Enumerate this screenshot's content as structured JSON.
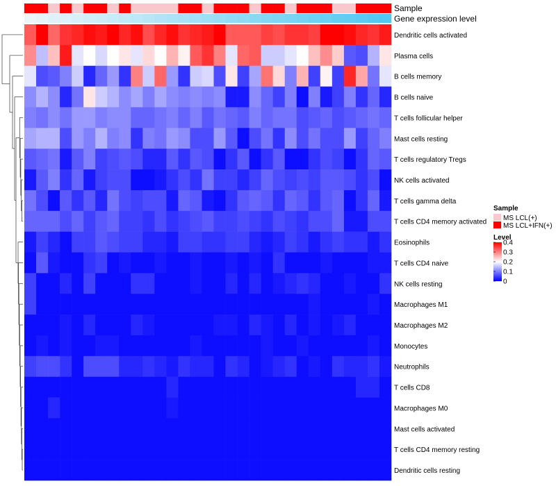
{
  "chart_data": {
    "type": "heatmap",
    "title": "",
    "annotation_tracks": [
      "Sample",
      "Gene expression level"
    ],
    "legend_sample": {
      "title": "Sample",
      "entries": [
        {
          "label": "MS LCL(+)",
          "color": "#f8c8cc"
        },
        {
          "label": "MS LCL+IFN(+)",
          "color": "#ff0000"
        }
      ]
    },
    "legend_level": {
      "title": "Level",
      "ticks": [
        "0.4",
        "0.3",
        "0.2",
        "0.1",
        "0"
      ],
      "tick_values": [
        0.4,
        0.3,
        0.2,
        0.1,
        0
      ],
      "range": [
        0,
        0.4
      ],
      "colors": {
        "low": "#0000ff",
        "mid": "#ffffff",
        "high": "#ff0000"
      }
    },
    "columns": 31,
    "sample_track": [
      1,
      1,
      0,
      1,
      0,
      1,
      1,
      0,
      1,
      0,
      0,
      0,
      0,
      1,
      1,
      0,
      1,
      1,
      1,
      0,
      1,
      1,
      0,
      1,
      1,
      1,
      0,
      0,
      1,
      1,
      1
    ],
    "gene_expression_track": [
      0.0,
      0.03,
      0.07,
      0.1,
      0.13,
      0.17,
      0.2,
      0.23,
      0.27,
      0.3,
      0.33,
      0.37,
      0.4,
      0.43,
      0.47,
      0.5,
      0.53,
      0.57,
      0.6,
      0.63,
      0.67,
      0.7,
      0.73,
      0.77,
      0.8,
      0.83,
      0.87,
      0.9,
      0.93,
      0.97,
      1.0
    ],
    "rows": [
      "Dendritic cells activated",
      "Plasma cells",
      "B cells memory",
      "B cells naive",
      "T cells follicular helper",
      "Mast cells resting",
      "T cells regulatory  Tregs",
      "NK cells activated",
      "T cells gamma delta",
      "T cells CD4 memory activated",
      "Eosinophils",
      "T cells CD4 naive",
      "NK cells resting",
      "Macrophages M1",
      "Macrophages M2",
      "Monocytes",
      "Neutrophils",
      "T cells CD8",
      "Macrophages M0",
      "Mast cells activated",
      "T cells CD4 memory resting",
      "Dendritic cells resting"
    ],
    "values": [
      [
        0.33,
        0.4,
        0.32,
        0.36,
        0.37,
        0.39,
        0.38,
        0.4,
        0.37,
        0.39,
        0.34,
        0.37,
        0.39,
        0.36,
        0.37,
        0.38,
        0.4,
        0.33,
        0.33,
        0.33,
        0.35,
        0.34,
        0.36,
        0.36,
        0.35,
        0.4,
        0.4,
        0.39,
        0.37,
        0.36,
        0.38
      ],
      [
        0.29,
        0.15,
        0.25,
        0.38,
        0.18,
        0.2,
        0.17,
        0.2,
        0.22,
        0.18,
        0.23,
        0.2,
        0.26,
        0.21,
        0.33,
        0.36,
        0.3,
        0.18,
        0.32,
        0.33,
        0.16,
        0.16,
        0.18,
        0.2,
        0.25,
        0.29,
        0.24,
        0.07,
        0.06,
        0.14,
        0.22
      ],
      [
        0.18,
        0.06,
        0.07,
        0.1,
        0.16,
        0.03,
        0.08,
        0.12,
        0.04,
        0.3,
        0.16,
        0.32,
        0.12,
        0.04,
        0.16,
        0.17,
        0.06,
        0.22,
        0.05,
        0.13,
        0.31,
        0.23,
        0.1,
        0.26,
        0.05,
        0.21,
        0.05,
        0.37,
        0.27,
        0.09,
        0.18
      ],
      [
        0.11,
        0.14,
        0.11,
        0.03,
        0.09,
        0.22,
        0.16,
        0.14,
        0.11,
        0.13,
        0.1,
        0.13,
        0.11,
        0.1,
        0.11,
        0.1,
        0.11,
        0.02,
        0.02,
        0.11,
        0.08,
        0.05,
        0.1,
        0.01,
        0.1,
        0.02,
        0.05,
        0.1,
        0.04,
        0.08,
        0.03
      ],
      [
        0.1,
        0.09,
        0.11,
        0.09,
        0.12,
        0.12,
        0.1,
        0.11,
        0.11,
        0.08,
        0.08,
        0.09,
        0.1,
        0.08,
        0.1,
        0.07,
        0.09,
        0.08,
        0.07,
        0.1,
        0.08,
        0.09,
        0.09,
        0.06,
        0.07,
        0.08,
        0.06,
        0.07,
        0.08,
        0.09,
        0.08
      ],
      [
        0.13,
        0.14,
        0.14,
        0.06,
        0.12,
        0.1,
        0.14,
        0.1,
        0.11,
        0.04,
        0.1,
        0.09,
        0.12,
        0.11,
        0.06,
        0.06,
        0.12,
        0.07,
        0.01,
        0.06,
        0.09,
        0.04,
        0.11,
        0.06,
        0.09,
        0.06,
        0.06,
        0.12,
        0.05,
        0.08,
        0.1
      ],
      [
        0.07,
        0.08,
        0.09,
        0.02,
        0.07,
        0.1,
        0.05,
        0.06,
        0.07,
        0.06,
        0.03,
        0.03,
        0.07,
        0.04,
        0.07,
        0.06,
        0.01,
        0.04,
        0.07,
        0.01,
        0.04,
        0.07,
        0.01,
        0.01,
        0.04,
        0.06,
        0.05,
        0.01,
        0.04,
        0.08,
        0.07
      ],
      [
        0.02,
        0.07,
        0.1,
        0.04,
        0.08,
        0.02,
        0.05,
        0.06,
        0.06,
        0.01,
        0.01,
        0.02,
        0.04,
        0.06,
        0.04,
        0.09,
        0.05,
        0.05,
        0.03,
        0.05,
        0.08,
        0.06,
        0.05,
        0.06,
        0.05,
        0.07,
        0.07,
        0.06,
        0.04,
        0.06,
        0.01
      ],
      [
        0.09,
        0.06,
        0.01,
        0.07,
        0.04,
        0.07,
        0.03,
        0.09,
        0.06,
        0.05,
        0.06,
        0.06,
        0.02,
        0.08,
        0.07,
        0.02,
        0.01,
        0.04,
        0.07,
        0.08,
        0.07,
        0.04,
        0.08,
        0.07,
        0.04,
        0.07,
        0.08,
        0.01,
        0.04,
        0.08,
        0.02
      ],
      [
        0.08,
        0.08,
        0.08,
        0.06,
        0.08,
        0.05,
        0.07,
        0.08,
        0.05,
        0.05,
        0.04,
        0.06,
        0.04,
        0.05,
        0.06,
        0.07,
        0.05,
        0.05,
        0.06,
        0.05,
        0.04,
        0.06,
        0.05,
        0.04,
        0.06,
        0.06,
        0.08,
        0.02,
        0.02,
        0.06,
        0.06
      ],
      [
        0.02,
        0.05,
        0.03,
        0.01,
        0.05,
        0.05,
        0.07,
        0.06,
        0.05,
        0.05,
        0.03,
        0.03,
        0.02,
        0.05,
        0.05,
        0.04,
        0.04,
        0.05,
        0.05,
        0.03,
        0.02,
        0.03,
        0.05,
        0.04,
        0.02,
        0.04,
        0.05,
        0.04,
        0.04,
        0.02,
        0.04
      ],
      [
        0.01,
        0.07,
        0.02,
        0.01,
        0.01,
        0.04,
        0.05,
        0.01,
        0.02,
        0.01,
        0.01,
        0.02,
        0.01,
        0.01,
        0.02,
        0.01,
        0.01,
        0.02,
        0.01,
        0.02,
        0.01,
        0.04,
        0.01,
        0.01,
        0.01,
        0.02,
        0.01,
        0.01,
        0.01,
        0.02,
        0.02
      ],
      [
        0.05,
        0.01,
        0.01,
        0.03,
        0.01,
        0.05,
        0.01,
        0.01,
        0.01,
        0.04,
        0.04,
        0.01,
        0.01,
        0.01,
        0.02,
        0.01,
        0.01,
        0.03,
        0.01,
        0.03,
        0.01,
        0.02,
        0.03,
        0.04,
        0.03,
        0.01,
        0.01,
        0.02,
        0.01,
        0.01,
        0.04
      ],
      [
        0.05,
        0.01,
        0.01,
        0.01,
        0.01,
        0.01,
        0.01,
        0.01,
        0.01,
        0.01,
        0.01,
        0.01,
        0.01,
        0.01,
        0.01,
        0.01,
        0.01,
        0.01,
        0.01,
        0.01,
        0.01,
        0.01,
        0.01,
        0.01,
        0.02,
        0.01,
        0.01,
        0.01,
        0.01,
        0.02,
        0.01
      ],
      [
        0.01,
        0.01,
        0.01,
        0.02,
        0.01,
        0.03,
        0.01,
        0.01,
        0.01,
        0.03,
        0.02,
        0.01,
        0.01,
        0.01,
        0.01,
        0.01,
        0.02,
        0.02,
        0.01,
        0.03,
        0.02,
        0.01,
        0.03,
        0.01,
        0.02,
        0.01,
        0.02,
        0.03,
        0.01,
        0.01,
        0.01
      ],
      [
        0.01,
        0.02,
        0.01,
        0.02,
        0.01,
        0.01,
        0.02,
        0.02,
        0.01,
        0.01,
        0.01,
        0.01,
        0.01,
        0.01,
        0.02,
        0.01,
        0.01,
        0.01,
        0.01,
        0.01,
        0.02,
        0.01,
        0.01,
        0.02,
        0.01,
        0.01,
        0.01,
        0.01,
        0.01,
        0.02,
        0.01
      ],
      [
        0.05,
        0.06,
        0.06,
        0.04,
        0.01,
        0.06,
        0.06,
        0.06,
        0.03,
        0.03,
        0.04,
        0.03,
        0.02,
        0.04,
        0.03,
        0.03,
        0.01,
        0.04,
        0.03,
        0.01,
        0.02,
        0.03,
        0.04,
        0.01,
        0.02,
        0.01,
        0.04,
        0.03,
        0.03,
        0.04,
        0.02
      ],
      [
        0.01,
        0.01,
        0.01,
        0.01,
        0.01,
        0.01,
        0.01,
        0.01,
        0.01,
        0.01,
        0.01,
        0.01,
        0.03,
        0.01,
        0.01,
        0.01,
        0.01,
        0.01,
        0.01,
        0.01,
        0.01,
        0.01,
        0.01,
        0.01,
        0.01,
        0.01,
        0.01,
        0.01,
        0.03,
        0.03,
        0.01
      ],
      [
        0.01,
        0.01,
        0.03,
        0.01,
        0.01,
        0.01,
        0.01,
        0.01,
        0.01,
        0.01,
        0.01,
        0.01,
        0.02,
        0.01,
        0.01,
        0.01,
        0.01,
        0.01,
        0.01,
        0.01,
        0.01,
        0.01,
        0.01,
        0.01,
        0.01,
        0.01,
        0.01,
        0.01,
        0.01,
        0.01,
        0.01
      ],
      [
        0.01,
        0.01,
        0.01,
        0.01,
        0.01,
        0.01,
        0.01,
        0.01,
        0.01,
        0.01,
        0.01,
        0.01,
        0.01,
        0.01,
        0.01,
        0.01,
        0.01,
        0.01,
        0.01,
        0.01,
        0.01,
        0.01,
        0.01,
        0.01,
        0.01,
        0.01,
        0.01,
        0.01,
        0.01,
        0.01,
        0.01
      ],
      [
        0.01,
        0.01,
        0.01,
        0.01,
        0.01,
        0.01,
        0.01,
        0.01,
        0.01,
        0.01,
        0.01,
        0.01,
        0.01,
        0.01,
        0.01,
        0.01,
        0.01,
        0.01,
        0.01,
        0.01,
        0.01,
        0.01,
        0.01,
        0.01,
        0.01,
        0.01,
        0.01,
        0.01,
        0.01,
        0.01,
        0.01
      ],
      [
        0.01,
        0.01,
        0.01,
        0.01,
        0.01,
        0.01,
        0.01,
        0.01,
        0.01,
        0.01,
        0.01,
        0.01,
        0.01,
        0.01,
        0.01,
        0.01,
        0.01,
        0.01,
        0.01,
        0.01,
        0.01,
        0.01,
        0.01,
        0.01,
        0.01,
        0.01,
        0.01,
        0.01,
        0.01,
        0.01,
        0.01
      ]
    ]
  }
}
